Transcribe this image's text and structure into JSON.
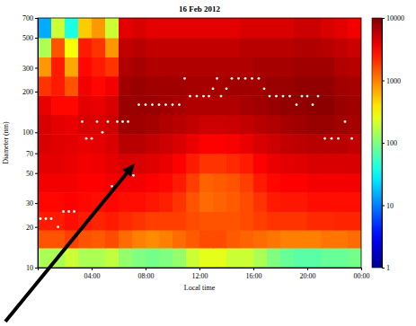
{
  "chart_data": {
    "type": "heatmap",
    "title": "16 Feb 2012",
    "x_label": "Local time",
    "y_label": "Diameter (nm)",
    "log": "y",
    "xlim": [
      0,
      24
    ],
    "xticks": [
      {
        "value": 4,
        "label": "04:00"
      },
      {
        "value": 8,
        "label": "08:00"
      },
      {
        "value": 12,
        "label": "12:00"
      },
      {
        "value": 16,
        "label": "16:00"
      },
      {
        "value": 20,
        "label": "20:00"
      },
      {
        "value": 24,
        "label": "00:00"
      }
    ],
    "ylim": [
      10,
      700
    ],
    "yticks": [
      10,
      20,
      30,
      50,
      70,
      100,
      200,
      300,
      500,
      700
    ],
    "x_edges": [
      0,
      1,
      2,
      3,
      4,
      5,
      6,
      7,
      8,
      9,
      10,
      11,
      12,
      13,
      14,
      15,
      16,
      17,
      18,
      19,
      20,
      21,
      22,
      23,
      24
    ],
    "y_edges": [
      10,
      14,
      19,
      26,
      36,
      50,
      70,
      97,
      135,
      187,
      260,
      360,
      500,
      700
    ],
    "cells": [
      [
        150,
        150,
        200,
        150,
        150,
        180,
        120,
        100,
        90,
        100,
        120,
        200,
        250,
        250,
        200,
        200,
        150,
        100,
        80,
        70,
        70,
        80,
        80,
        90
      ],
      [
        1500,
        1500,
        1800,
        1500,
        1400,
        1600,
        1200,
        1000,
        900,
        1000,
        1200,
        1400,
        1600,
        1600,
        1400,
        1300,
        1200,
        1100,
        1000,
        1000,
        1000,
        1100,
        1100,
        1200
      ],
      [
        2500,
        2500,
        2800,
        2500,
        2300,
        2500,
        2200,
        2000,
        1800,
        1800,
        1800,
        1600,
        1500,
        1500,
        1500,
        1600,
        1800,
        2000,
        2000,
        2000,
        2200,
        2200,
        2300,
        2300
      ],
      [
        3000,
        3000,
        3200,
        3000,
        2800,
        3000,
        2800,
        2800,
        2600,
        2400,
        2000,
        1500,
        1200,
        1300,
        1400,
        1600,
        2000,
        2500,
        2600,
        2600,
        2800,
        2800,
        2800,
        2800
      ],
      [
        3500,
        3500,
        3500,
        3200,
        3200,
        3500,
        3500,
        3500,
        3200,
        3000,
        2500,
        1800,
        1300,
        1400,
        1500,
        1800,
        2500,
        3000,
        3200,
        3200,
        3500,
        3500,
        3500,
        3500
      ],
      [
        4000,
        4000,
        3800,
        3500,
        3600,
        4000,
        4500,
        4500,
        4200,
        3800,
        3200,
        2500,
        2000,
        2000,
        2200,
        2500,
        3200,
        3800,
        4000,
        4200,
        4500,
        4500,
        4500,
        4500
      ],
      [
        4500,
        4200,
        4000,
        3800,
        4000,
        4500,
        6000,
        6000,
        5500,
        5000,
        4500,
        3800,
        3200,
        3200,
        3400,
        3800,
        4500,
        5000,
        5500,
        5800,
        6000,
        6000,
        6000,
        5500
      ],
      [
        4500,
        4000,
        3800,
        4500,
        4500,
        5000,
        7500,
        7500,
        7000,
        6500,
        6000,
        5500,
        5000,
        5000,
        5200,
        5500,
        6000,
        6500,
        7000,
        7500,
        8000,
        8000,
        7500,
        7000
      ],
      [
        3800,
        3000,
        3000,
        4000,
        3800,
        4500,
        8000,
        8000,
        8000,
        7500,
        7000,
        6500,
        6500,
        6500,
        6500,
        7000,
        7500,
        8000,
        8500,
        8500,
        9000,
        9000,
        8000,
        7500
      ],
      [
        2000,
        2500,
        1500,
        3500,
        3000,
        3500,
        7500,
        8000,
        7500,
        7500,
        7500,
        7000,
        7000,
        7000,
        7500,
        7500,
        7500,
        8000,
        8000,
        8500,
        8500,
        8500,
        7500,
        7000
      ],
      [
        800,
        2500,
        700,
        3000,
        2500,
        2000,
        6500,
        7000,
        6500,
        6500,
        6500,
        6500,
        6500,
        6500,
        6500,
        6500,
        7000,
        7000,
        7000,
        7500,
        7500,
        7500,
        6500,
        6000
      ],
      [
        150,
        1500,
        300,
        2500,
        2000,
        800,
        5500,
        6000,
        5500,
        5500,
        5500,
        5500,
        5500,
        5500,
        5500,
        6000,
        6000,
        6000,
        6000,
        6500,
        6500,
        6000,
        5500,
        5000
      ],
      [
        15,
        200,
        40,
        500,
        800,
        200,
        4000,
        4500,
        4000,
        4000,
        4000,
        4000,
        4000,
        4000,
        4000,
        4500,
        4500,
        4500,
        4500,
        5000,
        5000,
        4500,
        4000,
        3500
      ]
    ],
    "colorbar": {
      "range": [
        1,
        10000
      ],
      "ticks": [
        1,
        10,
        100,
        1000,
        10000
      ]
    },
    "series": [
      {
        "type": "scatter",
        "color": "#ffffff",
        "marker": "circle",
        "x": [
          0.2,
          0.6,
          1.0,
          1.5,
          1.9,
          2.3,
          2.7,
          3.3,
          3.6,
          4.0,
          4.4,
          4.8,
          5.2,
          5.5,
          5.9,
          6.3,
          6.7,
          7.1,
          7.5,
          8.0,
          8.5,
          9.0,
          9.5,
          10.0,
          10.5,
          10.9,
          11.3,
          11.8,
          12.3,
          12.7,
          13.0,
          13.3,
          13.6,
          14.0,
          14.4,
          14.9,
          15.4,
          15.9,
          16.4,
          16.8,
          17.2,
          17.7,
          18.2,
          18.7,
          19.2,
          19.6,
          20.0,
          20.4,
          20.8,
          21.3,
          21.8,
          22.3,
          22.8,
          23.3
        ],
        "values": [
          23,
          23,
          23,
          20,
          26,
          26,
          26,
          120,
          90,
          90,
          120,
          100,
          120,
          40,
          120,
          120,
          120,
          48,
          160,
          160,
          160,
          160,
          160,
          160,
          160,
          250,
          185,
          185,
          185,
          185,
          210,
          250,
          185,
          210,
          250,
          250,
          250,
          250,
          250,
          210,
          185,
          185,
          185,
          185,
          160,
          185,
          185,
          160,
          185,
          90,
          90,
          90,
          120,
          90
        ]
      }
    ]
  }
}
